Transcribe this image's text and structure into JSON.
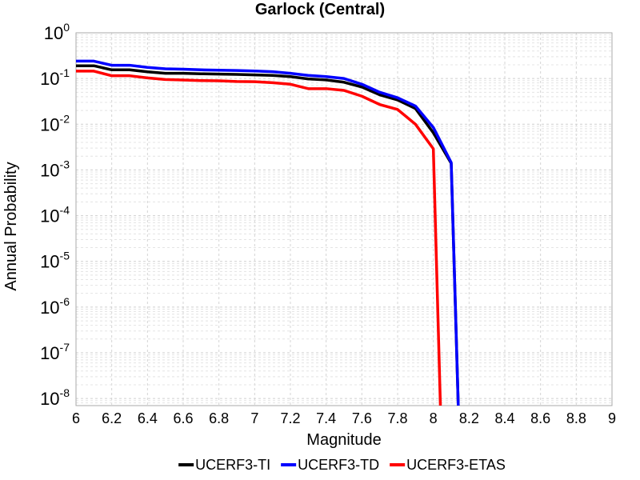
{
  "chart_data": {
    "type": "line",
    "title": "Garlock (Central)",
    "xlabel": "Magnitude",
    "ylabel": "Annual Probability",
    "xlim": [
      6,
      9
    ],
    "y_scale": "log",
    "ylim": [
      7e-09,
      1
    ],
    "x_ticks": [
      "6",
      "6.2",
      "6.4",
      "6.6",
      "6.8",
      "7",
      "7.2",
      "7.4",
      "7.6",
      "7.8",
      "8",
      "8.2",
      "8.4",
      "8.6",
      "8.8",
      "9"
    ],
    "y_ticks": [
      {
        "base": "10",
        "exp": "0",
        "value": 1
      },
      {
        "base": "10",
        "exp": "-1",
        "value": 0.1
      },
      {
        "base": "10",
        "exp": "-2",
        "value": 0.01
      },
      {
        "base": "10",
        "exp": "-3",
        "value": 0.001
      },
      {
        "base": "10",
        "exp": "-4",
        "value": 0.0001
      },
      {
        "base": "10",
        "exp": "-5",
        "value": 1e-05
      },
      {
        "base": "10",
        "exp": "-6",
        "value": 1e-06
      },
      {
        "base": "10",
        "exp": "-7",
        "value": 1e-07
      },
      {
        "base": "10",
        "exp": "-8",
        "value": 1e-08
      }
    ],
    "grid": true,
    "legend_position": "bottom",
    "series": [
      {
        "name": "UCERF3-TI",
        "color": "#000000",
        "points": [
          [
            6.0,
            0.19
          ],
          [
            6.1,
            0.19
          ],
          [
            6.2,
            0.155
          ],
          [
            6.3,
            0.155
          ],
          [
            6.4,
            0.14
          ],
          [
            6.5,
            0.13
          ],
          [
            6.6,
            0.13
          ],
          [
            6.7,
            0.127
          ],
          [
            6.8,
            0.125
          ],
          [
            6.9,
            0.123
          ],
          [
            7.0,
            0.12
          ],
          [
            7.1,
            0.117
          ],
          [
            7.2,
            0.11
          ],
          [
            7.3,
            0.098
          ],
          [
            7.4,
            0.093
          ],
          [
            7.5,
            0.083
          ],
          [
            7.6,
            0.065
          ],
          [
            7.7,
            0.044
          ],
          [
            7.8,
            0.034
          ],
          [
            7.9,
            0.022
          ],
          [
            8.0,
            0.0065
          ],
          [
            8.1,
            0.0014
          ],
          [
            8.14,
            6e-09
          ]
        ]
      },
      {
        "name": "UCERF3-TD",
        "color": "#0000ff",
        "points": [
          [
            6.0,
            0.24
          ],
          [
            6.1,
            0.24
          ],
          [
            6.2,
            0.195
          ],
          [
            6.3,
            0.195
          ],
          [
            6.4,
            0.175
          ],
          [
            6.5,
            0.163
          ],
          [
            6.6,
            0.16
          ],
          [
            6.7,
            0.155
          ],
          [
            6.8,
            0.152
          ],
          [
            6.9,
            0.15
          ],
          [
            7.0,
            0.146
          ],
          [
            7.1,
            0.141
          ],
          [
            7.2,
            0.13
          ],
          [
            7.3,
            0.117
          ],
          [
            7.4,
            0.11
          ],
          [
            7.5,
            0.1
          ],
          [
            7.6,
            0.075
          ],
          [
            7.7,
            0.05
          ],
          [
            7.8,
            0.038
          ],
          [
            7.9,
            0.025
          ],
          [
            8.0,
            0.0085
          ],
          [
            8.1,
            0.00145
          ],
          [
            8.14,
            6e-09
          ]
        ]
      },
      {
        "name": "UCERF3-ETAS",
        "color": "#ff0000",
        "points": [
          [
            6.0,
            0.145
          ],
          [
            6.1,
            0.145
          ],
          [
            6.2,
            0.115
          ],
          [
            6.3,
            0.115
          ],
          [
            6.4,
            0.103
          ],
          [
            6.5,
            0.095
          ],
          [
            6.6,
            0.093
          ],
          [
            6.7,
            0.09
          ],
          [
            6.8,
            0.089
          ],
          [
            6.9,
            0.086
          ],
          [
            7.0,
            0.085
          ],
          [
            7.1,
            0.081
          ],
          [
            7.2,
            0.075
          ],
          [
            7.3,
            0.06
          ],
          [
            7.4,
            0.06
          ],
          [
            7.5,
            0.055
          ],
          [
            7.6,
            0.041
          ],
          [
            7.7,
            0.027
          ],
          [
            7.8,
            0.021
          ],
          [
            7.9,
            0.01
          ],
          [
            8.0,
            0.0029
          ],
          [
            8.04,
            6e-09
          ]
        ]
      }
    ]
  }
}
